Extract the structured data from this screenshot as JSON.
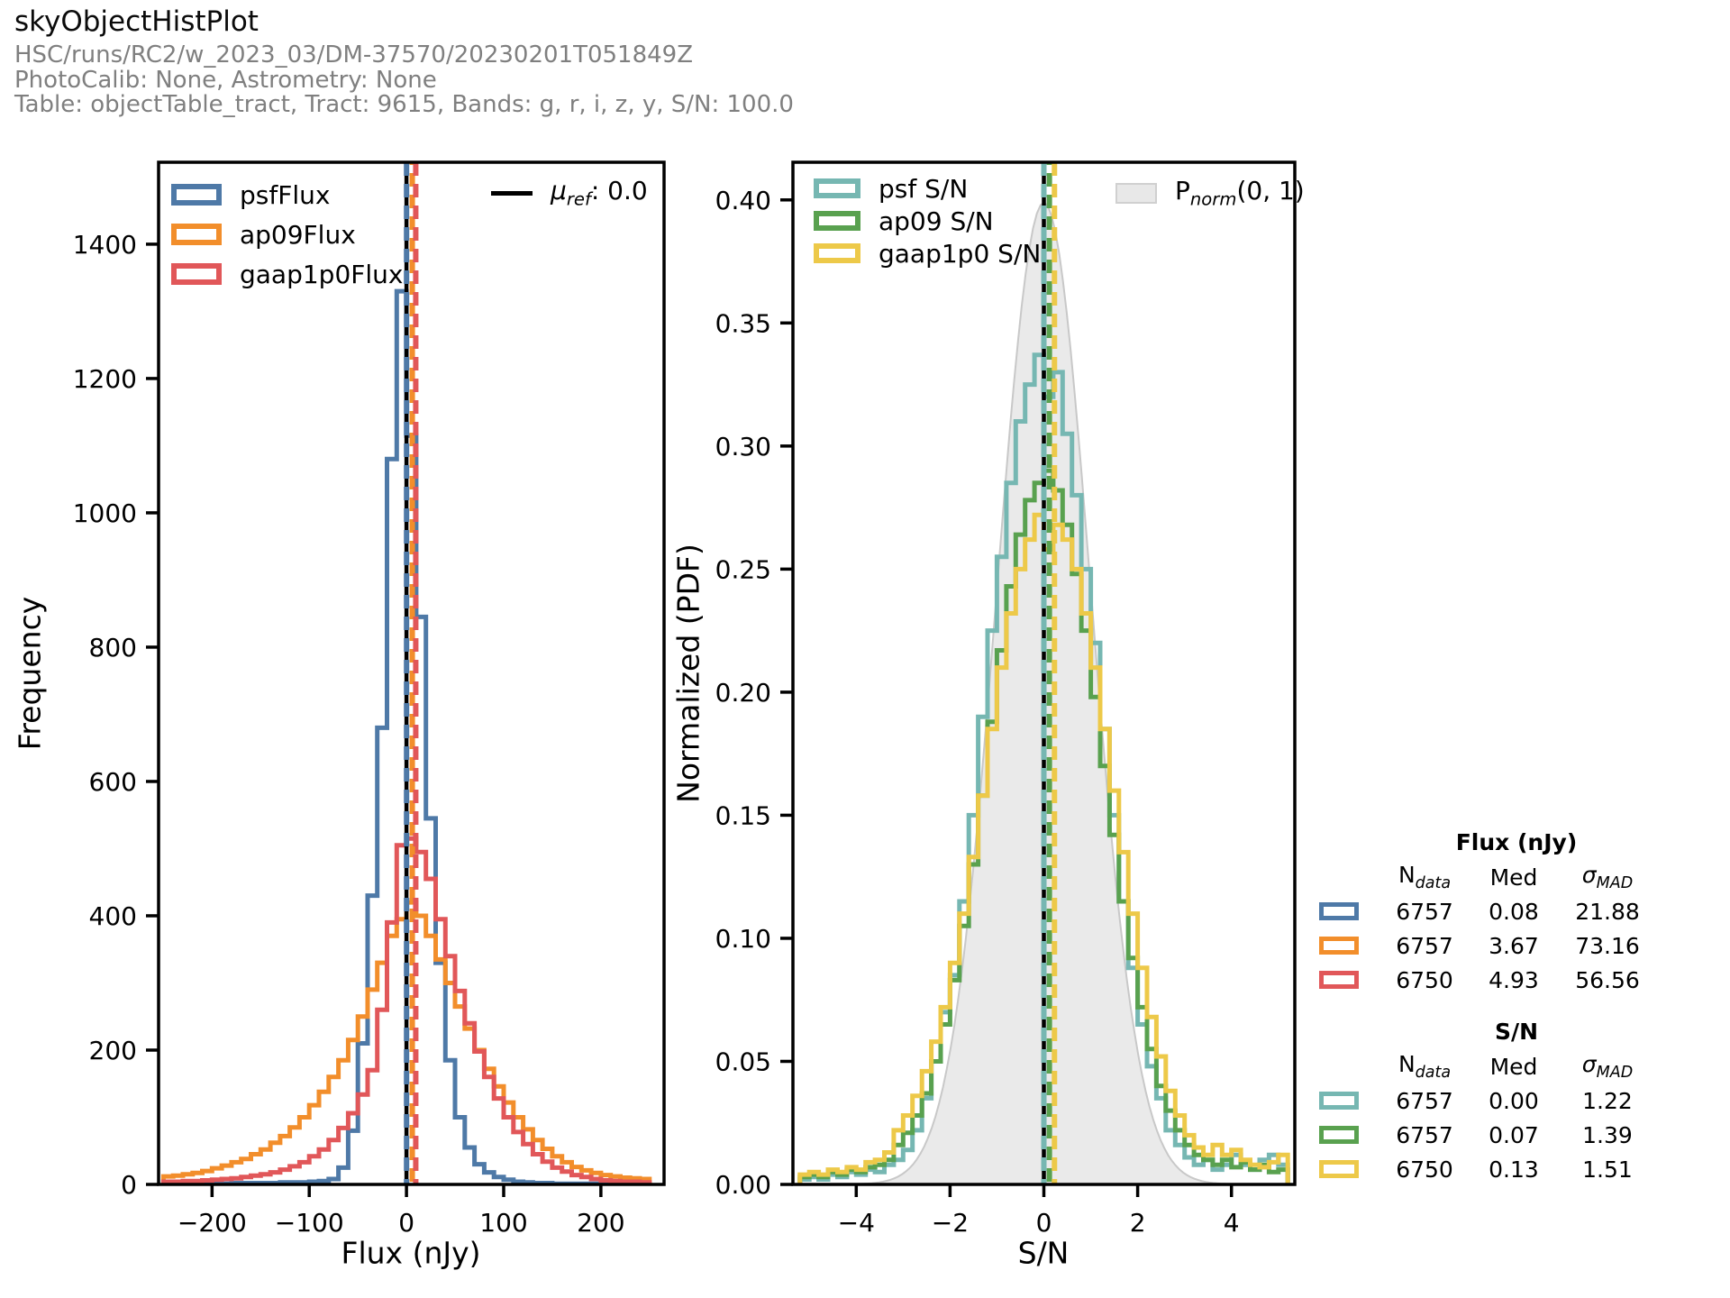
{
  "header": {
    "title": "skyObjectHistPlot",
    "subtitle1": "HSC/runs/RC2/w_2023_03/DM-37570/20230201T051849Z",
    "subtitle2": "PhotoCalib: None, Astrometry: None",
    "subtitle3": "Table: objectTable_tract, Tract: 9615, Bands: g, r, i, z, y, S/N: 100.0"
  },
  "left_plot": {
    "xlabel": "Flux (nJy)",
    "ylabel": "Frequency",
    "legend": [
      "psfFlux",
      "ap09Flux",
      "gaap1p0Flux"
    ],
    "ref_legend": {
      "sym": "μ",
      "sub": "ref",
      "rest": ": 0.0"
    }
  },
  "right_plot": {
    "xlabel": "S/N",
    "ylabel": "Normalized (PDF)",
    "legend": [
      "psf S/N",
      "ap09 S/N",
      "gaap1p0 S/N"
    ],
    "norm_legend": {
      "sym": "P",
      "sub": "norm",
      "rest": "(0, 1)"
    }
  },
  "stats": {
    "flux": {
      "title": "Flux (nJy)",
      "headers": {
        "n_sym": "N",
        "n_sub": "data",
        "med": "Med",
        "sigma_sym": "σ",
        "sigma_sub": "MAD"
      },
      "rows": [
        {
          "color": "#4e79a7",
          "n": "6757",
          "med": "0.08",
          "smad": "21.88"
        },
        {
          "color": "#f28e2b",
          "n": "6757",
          "med": "3.67",
          "smad": "73.16"
        },
        {
          "color": "#e15759",
          "n": "6750",
          "med": "4.93",
          "smad": "56.56"
        }
      ]
    },
    "sn": {
      "title": "S/N",
      "headers": {
        "n_sym": "N",
        "n_sub": "data",
        "med": "Med",
        "sigma_sym": "σ",
        "sigma_sub": "MAD"
      },
      "rows": [
        {
          "color": "#76b7b2",
          "n": "6757",
          "med": "0.00",
          "smad": "1.22"
        },
        {
          "color": "#59a14f",
          "n": "6757",
          "med": "0.07",
          "smad": "1.39"
        },
        {
          "color": "#edc949",
          "n": "6750",
          "med": "0.13",
          "smad": "1.51"
        }
      ]
    }
  },
  "chart_data": [
    {
      "type": "bar",
      "subtype": "step-histogram",
      "title": "Flux histogram",
      "xlabel": "Flux (nJy)",
      "ylabel": "Frequency",
      "xlim": [
        -255,
        265
      ],
      "ylim": [
        0,
        1522
      ],
      "xticks": [
        -200,
        -100,
        0,
        100,
        200
      ],
      "xtick_labels": [
        "−200",
        "−100",
        "0",
        "100",
        "200"
      ],
      "yticks": [
        0,
        200,
        400,
        600,
        800,
        1000,
        1200,
        1400
      ],
      "ytick_labels": [
        "0",
        "200",
        "400",
        "600",
        "800",
        "1000",
        "1200",
        "1400"
      ],
      "bin_start": -250,
      "bin_width": 10,
      "ref_line": {
        "x": 0,
        "color": "#000000",
        "label": "μref: 0.0"
      },
      "series": [
        {
          "name": "psfFlux",
          "color": "#4e79a7",
          "n_data": 6757,
          "median": 0.08,
          "sigma_mad": 21.88,
          "counts": [
            1,
            1,
            1,
            1,
            1,
            1,
            1,
            2,
            2,
            2,
            2,
            2,
            3,
            3,
            3,
            4,
            5,
            8,
            25,
            80,
            210,
            430,
            680,
            1080,
            1330,
            1115,
            845,
            545,
            330,
            185,
            100,
            55,
            30,
            18,
            11,
            7,
            4,
            3,
            2,
            2,
            1,
            1,
            1,
            1,
            1,
            1,
            1,
            0,
            0,
            0
          ]
        },
        {
          "name": "ap09Flux",
          "color": "#f28e2b",
          "n_data": 6757,
          "median": 3.67,
          "sigma_mad": 73.16,
          "counts": [
            12,
            13,
            15,
            17,
            20,
            24,
            28,
            33,
            38,
            45,
            52,
            62,
            72,
            85,
            100,
            118,
            138,
            160,
            185,
            215,
            250,
            290,
            330,
            370,
            395,
            420,
            400,
            370,
            335,
            300,
            265,
            232,
            200,
            172,
            146,
            122,
            100,
            82,
            66,
            53,
            42,
            33,
            26,
            21,
            17,
            14,
            12,
            10,
            9,
            8
          ]
        },
        {
          "name": "gaap1p0Flux",
          "color": "#e15759",
          "n_data": 6750,
          "median": 4.93,
          "sigma_mad": 56.56,
          "counts": [
            4,
            4,
            5,
            5,
            6,
            7,
            8,
            9,
            11,
            13,
            15,
            18,
            22,
            27,
            33,
            42,
            52,
            66,
            84,
            106,
            134,
            170,
            260,
            390,
            505,
            515,
            495,
            455,
            395,
            340,
            288,
            240,
            198,
            160,
            128,
            100,
            78,
            60,
            45,
            34,
            25,
            19,
            14,
            11,
            8,
            6,
            5,
            4,
            4,
            3
          ]
        }
      ]
    },
    {
      "type": "bar",
      "subtype": "step-histogram",
      "title": "S/N histogram",
      "xlabel": "S/N",
      "ylabel": "Normalized (PDF)",
      "xlim": [
        -5.35,
        5.35
      ],
      "ylim": [
        0,
        0.4153
      ],
      "xticks": [
        -4,
        -2,
        0,
        2,
        4
      ],
      "xtick_labels": [
        "−4",
        "−2",
        "0",
        "2",
        "4"
      ],
      "yticks": [
        0,
        0.05,
        0.1,
        0.15,
        0.2,
        0.25,
        0.3,
        0.35,
        0.4
      ],
      "ytick_labels": [
        "0.00",
        "0.05",
        "0.10",
        "0.15",
        "0.20",
        "0.25",
        "0.30",
        "0.35",
        "0.40"
      ],
      "bin_start": -5.2,
      "bin_width": 0.2,
      "ref_line": {
        "x": 0,
        "color": "#000000",
        "label": "0"
      },
      "normal_overlay": {
        "mu": 0,
        "sigma": 1,
        "peak": 0.3989,
        "label": "Pnorm(0, 1)",
        "fill": "#e6e6e6",
        "edge": "#c8c8c8"
      },
      "series": [
        {
          "name": "psf S/N",
          "color": "#76b7b2",
          "n_data": 6757,
          "median": 0.0,
          "sigma_mad": 1.22,
          "counts": [
            0.002,
            0.003,
            0.002,
            0.004,
            0.003,
            0.005,
            0.004,
            0.006,
            0.005,
            0.008,
            0.01,
            0.014,
            0.022,
            0.035,
            0.05,
            0.07,
            0.085,
            0.115,
            0.15,
            0.19,
            0.225,
            0.255,
            0.285,
            0.31,
            0.325,
            0.337,
            0.32,
            0.33,
            0.305,
            0.28,
            0.25,
            0.22,
            0.185,
            0.15,
            0.115,
            0.088,
            0.065,
            0.048,
            0.035,
            0.022,
            0.016,
            0.011,
            0.008,
            0.01,
            0.006,
            0.008,
            0.012,
            0.008,
            0.006,
            0.01,
            0.012,
            0.008
          ]
        },
        {
          "name": "ap09 S/N",
          "color": "#59a14f",
          "n_data": 6757,
          "median": 0.07,
          "sigma_mad": 1.39,
          "counts": [
            0.003,
            0.004,
            0.003,
            0.005,
            0.004,
            0.006,
            0.005,
            0.007,
            0.008,
            0.01,
            0.016,
            0.021,
            0.028,
            0.037,
            0.05,
            0.065,
            0.083,
            0.105,
            0.13,
            0.158,
            0.188,
            0.217,
            0.243,
            0.264,
            0.278,
            0.285,
            0.29,
            0.282,
            0.268,
            0.248,
            0.225,
            0.198,
            0.17,
            0.142,
            0.115,
            0.092,
            0.072,
            0.055,
            0.04,
            0.03,
            0.022,
            0.016,
            0.012,
            0.01,
            0.008,
            0.01,
            0.007,
            0.009,
            0.006,
            0.008,
            0.005,
            0.006
          ]
        },
        {
          "name": "gaap1p0 S/N",
          "color": "#edc949",
          "n_data": 6750,
          "median": 0.13,
          "sigma_mad": 1.51,
          "counts": [
            0.004,
            0.005,
            0.004,
            0.006,
            0.005,
            0.007,
            0.006,
            0.009,
            0.01,
            0.013,
            0.022,
            0.028,
            0.036,
            0.046,
            0.058,
            0.072,
            0.09,
            0.11,
            0.133,
            0.158,
            0.185,
            0.21,
            0.232,
            0.25,
            0.262,
            0.272,
            0.258,
            0.268,
            0.262,
            0.25,
            0.232,
            0.21,
            0.185,
            0.16,
            0.135,
            0.11,
            0.088,
            0.068,
            0.052,
            0.038,
            0.028,
            0.02,
            0.015,
            0.012,
            0.016,
            0.012,
            0.014,
            0.01,
            0.008,
            0.007,
            0.009,
            0.012
          ]
        }
      ]
    }
  ]
}
